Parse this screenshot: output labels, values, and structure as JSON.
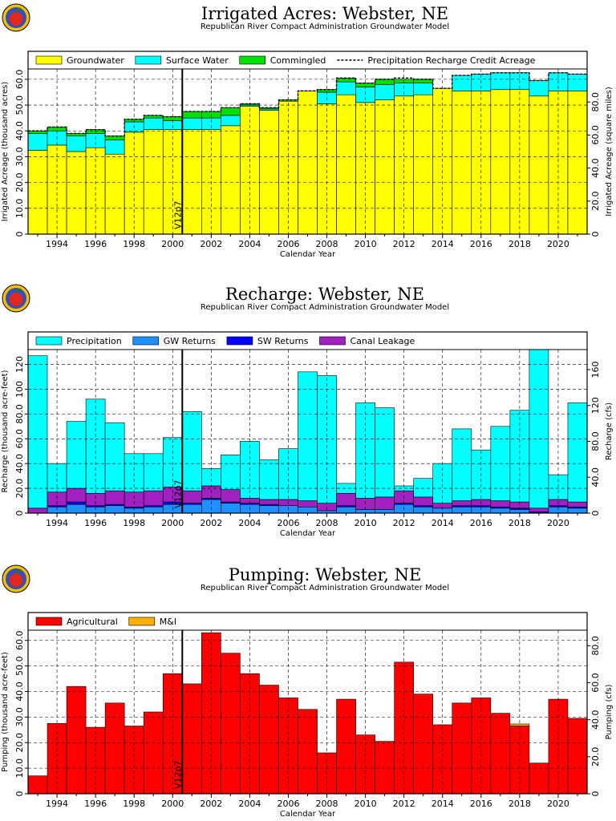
{
  "colors": {
    "groundwater": "#ffff00",
    "surface_water": "#00ffff",
    "commingled": "#00e000",
    "gw_returns": "#1e90ff",
    "sw_returns": "#0000ff",
    "canal_leakage": "#a020c0",
    "agricultural": "#ff0000",
    "mi": "#ffb000",
    "logo_red": "#e0281c",
    "logo_ring": "#f4c000"
  },
  "marker_label": "V12p7",
  "marker_year": 2000.5,
  "chart_data": [
    {
      "type": "bar",
      "stacked": true,
      "title": "Irrigated Acres: Webster, NE",
      "subtitle": "Republican River Compact Administration Groundwater Model",
      "xlabel": "Calendar Year",
      "ylabel": "Irrigated Acreage (thousand acres)",
      "y2label": "Irrigated Acreage (square miles)",
      "ylim": [
        0,
        64
      ],
      "yticks": [
        "0",
        "10.0",
        "20.0",
        "30.0",
        "40.0",
        "50.0",
        "60.0"
      ],
      "y2ticks": [
        "0",
        "20.0",
        "40.0",
        "60.0",
        "80.0"
      ],
      "xticks": [
        "1994",
        "1996",
        "1998",
        "2000",
        "2002",
        "2004",
        "2006",
        "2008",
        "2010",
        "2012",
        "2014",
        "2016",
        "2018",
        "2020"
      ],
      "categories": [
        1993,
        1994,
        1995,
        1996,
        1997,
        1998,
        1999,
        2000,
        2001,
        2002,
        2003,
        2004,
        2005,
        2006,
        2007,
        2008,
        2009,
        2010,
        2011,
        2012,
        2013,
        2014,
        2015,
        2016,
        2017,
        2018,
        2019,
        2020,
        2021
      ],
      "series": [
        {
          "name": "Groundwater",
          "color_key": "groundwater",
          "values": [
            32.5,
            34.5,
            32,
            33.5,
            31,
            39.5,
            40.5,
            40.5,
            40.5,
            40.5,
            42,
            49.5,
            48,
            51.5,
            55.5,
            50.5,
            54,
            51,
            52,
            53.5,
            54,
            56.5,
            55.5,
            55.5,
            56,
            56,
            53.5,
            55.5,
            55.5
          ]
        },
        {
          "name": "Surface Water",
          "color_key": "surface_water",
          "values": [
            6.5,
            5.5,
            6,
            5.5,
            5.5,
            4,
            4.5,
            3.5,
            4.5,
            4.5,
            4,
            0.5,
            0.5,
            0,
            0,
            4.5,
            5,
            6,
            6,
            5,
            4.5,
            0,
            6,
            6.5,
            6.5,
            6.5,
            6,
            7,
            6.5
          ]
        },
        {
          "name": "Commingled",
          "color_key": "commingled",
          "values": [
            1,
            1.5,
            1,
            1.5,
            1.5,
            1,
            1,
            1.5,
            2.5,
            2.5,
            3,
            0.5,
            0.5,
            0.5,
            0,
            1,
            1.5,
            1.5,
            2,
            1.5,
            1.5,
            0,
            0,
            0,
            0,
            0,
            0,
            0,
            0
          ]
        }
      ],
      "line_series": {
        "name": "Precipitation Recharge Credit Acreage",
        "values": [
          40,
          41.5,
          39,
          40.5,
          38,
          44.5,
          46,
          45.5,
          47.5,
          47.5,
          49,
          50.5,
          49,
          52,
          55.5,
          56,
          60.5,
          58.5,
          60,
          60.5,
          60,
          56.5,
          61.5,
          62,
          62.5,
          62.5,
          59.5,
          62.5,
          62
        ]
      },
      "legend": [
        "Groundwater",
        "Surface Water",
        "Commingled",
        "Precipitation Recharge Credit Acreage"
      ]
    },
    {
      "type": "bar",
      "stacked": true,
      "title": "Recharge: Webster, NE",
      "subtitle": "Republican River Compact Administration Groundwater Model",
      "xlabel": "Calendar Year",
      "ylabel": "Recharge (thousand acre-feet)",
      "y2label": "Recharge (cfs)",
      "ylim": [
        0,
        132
      ],
      "yticks": [
        "0",
        "20.0",
        "40.0",
        "60.0",
        "80.0",
        "100",
        "120"
      ],
      "y2ticks": [
        "0",
        "40.0",
        "80.0",
        "120",
        "160"
      ],
      "xticks": [
        "1994",
        "1996",
        "1998",
        "2000",
        "2002",
        "2004",
        "2006",
        "2008",
        "2010",
        "2012",
        "2014",
        "2016",
        "2018",
        "2020"
      ],
      "categories": [
        1993,
        1994,
        1995,
        1996,
        1997,
        1998,
        1999,
        2000,
        2001,
        2002,
        2003,
        2004,
        2005,
        2006,
        2007,
        2008,
        2009,
        2010,
        2011,
        2012,
        2013,
        2014,
        2015,
        2016,
        2017,
        2018,
        2019,
        2020,
        2021
      ],
      "series": [
        {
          "name": "GW Returns",
          "color_key": "gw_returns",
          "values": [
            0,
            5,
            7,
            5,
            6,
            4,
            5,
            7,
            7,
            11,
            8,
            7,
            6,
            6,
            5,
            2,
            5,
            3,
            3,
            7,
            5,
            4,
            5,
            5,
            4,
            3,
            0,
            5,
            4
          ]
        },
        {
          "name": "SW Returns",
          "color_key": "sw_returns",
          "values": [
            0,
            1,
            2,
            1,
            1,
            1,
            1,
            2,
            1,
            1,
            1,
            1,
            1,
            0,
            0,
            0,
            1,
            0,
            0,
            1,
            1,
            0,
            1,
            1,
            1,
            1,
            1,
            1,
            1
          ]
        },
        {
          "name": "Canal Leakage",
          "color_key": "canal_leakage",
          "values": [
            4,
            11,
            11,
            10,
            11,
            12,
            12,
            12,
            10,
            10,
            10,
            4,
            4,
            5,
            5,
            6,
            10,
            9,
            10,
            10,
            7,
            4,
            4,
            5,
            5,
            5,
            3,
            5,
            4
          ]
        },
        {
          "name": "Precipitation",
          "color_key": "surface_water",
          "values": [
            123,
            23,
            54,
            76,
            55,
            31,
            30,
            40,
            64,
            14,
            28,
            46,
            32,
            41,
            104,
            103,
            8,
            77,
            72,
            4,
            15,
            32,
            58,
            40,
            60,
            74,
            128,
            20,
            80
          ]
        }
      ],
      "legend": [
        "Precipitation",
        "GW Returns",
        "SW Returns",
        "Canal Leakage"
      ]
    },
    {
      "type": "bar",
      "stacked": true,
      "title": "Pumping: Webster, NE",
      "subtitle": "Republican River Compact Administration Groundwater Model",
      "xlabel": "Calendar Year",
      "ylabel": "Pumping (thousand acre-feet)",
      "y2label": "Pumping (cfs)",
      "ylim": [
        0,
        64
      ],
      "yticks": [
        "0",
        "10.0",
        "20.0",
        "30.0",
        "40.0",
        "50.0",
        "60.0"
      ],
      "y2ticks": [
        "0",
        "20.0",
        "40.0",
        "60.0",
        "80.0"
      ],
      "xticks": [
        "1994",
        "1996",
        "1998",
        "2000",
        "2002",
        "2004",
        "2006",
        "2008",
        "2010",
        "2012",
        "2014",
        "2016",
        "2018",
        "2020"
      ],
      "categories": [
        1993,
        1994,
        1995,
        1996,
        1997,
        1998,
        1999,
        2000,
        2001,
        2002,
        2003,
        2004,
        2005,
        2006,
        2007,
        2008,
        2009,
        2010,
        2011,
        2012,
        2013,
        2014,
        2015,
        2016,
        2017,
        2018,
        2019,
        2020,
        2021
      ],
      "series": [
        {
          "name": "Agricultural",
          "color_key": "agricultural",
          "values": [
            7,
            27.5,
            42,
            26,
            35.5,
            26.5,
            32,
            47,
            43,
            63,
            55,
            47,
            42.5,
            37.5,
            33,
            16,
            37,
            23,
            20.5,
            51.5,
            39,
            27,
            35.5,
            37.5,
            31.5,
            26.5,
            12,
            37,
            29.5
          ]
        },
        {
          "name": "M&I",
          "color_key": "mi",
          "values": [
            0,
            0,
            0,
            0,
            0,
            0,
            0,
            0,
            0,
            0,
            0,
            0,
            0,
            0,
            0,
            0,
            0,
            0,
            0,
            0,
            0,
            0,
            0,
            0,
            0,
            0.8,
            0,
            0,
            0
          ]
        }
      ],
      "legend": [
        "Agricultural",
        "M&I"
      ]
    }
  ]
}
